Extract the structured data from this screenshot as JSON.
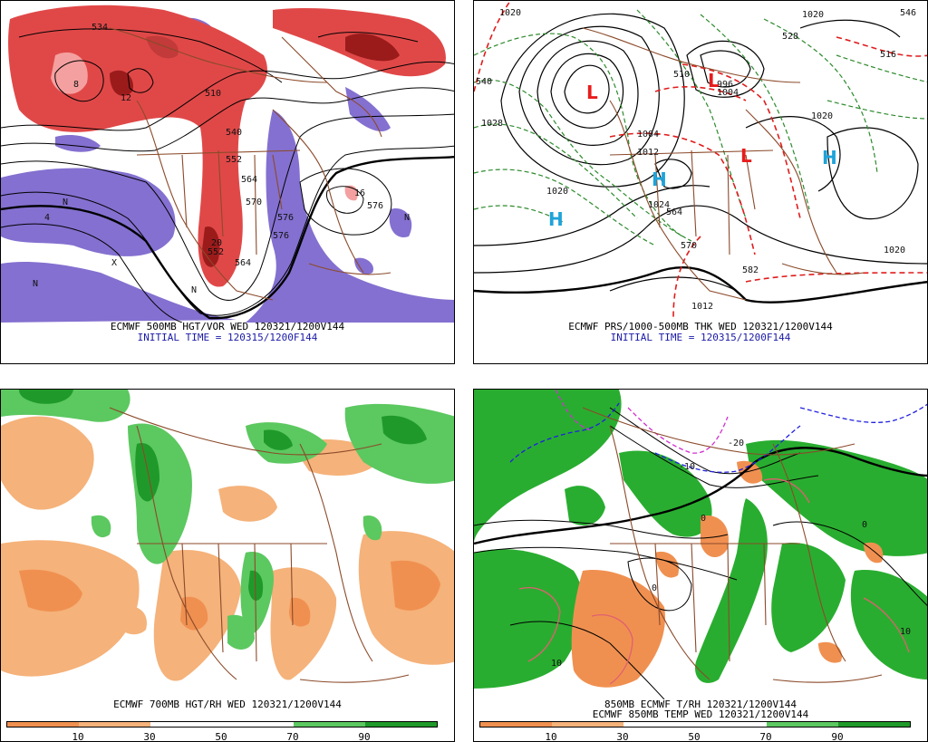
{
  "panels": [
    {
      "caption1": "ECMWF 500MB HGT/VOR WED 120321/1200V144",
      "caption2": "INITIAL TIME = 120315/1200F144",
      "contour_labels": [
        "534",
        "510",
        "540",
        "552",
        "564",
        "570",
        "576",
        "552",
        "564",
        "576",
        "576",
        "N",
        "N",
        "N",
        "N",
        "X",
        "4",
        "8",
        "12",
        "16",
        "20"
      ],
      "colors": {
        "vort_pos": "#e04848",
        "vort_pos_dark": "#9b1b1b",
        "vort_neg": "#8470d0",
        "contour": "#000000",
        "borders": "#8b4a2a"
      }
    },
    {
      "caption1": "ECMWF PRS/1000-500MB THK WED 120321/1200V144",
      "caption2": "INITIAL TIME = 120315/1200F144",
      "pressure_labels": [
        "1020",
        "1020",
        "1028",
        "1024",
        "1004",
        "1004",
        "996",
        "1012",
        "1020",
        "1020",
        "1020",
        "1012"
      ],
      "thickness_labels": [
        "540",
        "510",
        "516",
        "570",
        "546",
        "564",
        "582",
        "528"
      ],
      "highs": [
        "H",
        "H",
        "H"
      ],
      "lows": [
        "L",
        "L",
        "L"
      ],
      "colors": {
        "high": "#1fa3d9",
        "low": "#e81c1c",
        "thickness_cold": "#2d8a2d",
        "thickness_warm": "#e01c1c",
        "isobar": "#000000",
        "borders": "#8b4a2a"
      }
    },
    {
      "caption1": "ECMWF 700MB HGT/RH WED 120321/1200V144",
      "colorbar_ticks": [
        "10",
        "30",
        "50",
        "70",
        "90"
      ],
      "colors": {
        "dry_dark": "#f09050",
        "dry_light": "#f5b27a",
        "moist_light": "#5cc860",
        "moist_dark": "#1f9a2a",
        "borders": "#8b4a2a"
      }
    },
    {
      "caption1": "850MB ECMWF T/RH 120321/1200V144",
      "caption2": "ECMWF 850MB TEMP WED 120321/1200V144",
      "contour_labels": [
        "-20",
        "-10",
        "0",
        "10",
        "0",
        "0",
        "10"
      ],
      "colorbar_ticks": [
        "10",
        "30",
        "50",
        "70",
        "90"
      ],
      "colors": {
        "dry": "#f09050",
        "moist": "#29ad30",
        "cold_line": "#2020e0",
        "very_cold": "#d030d0",
        "warm_line": "#e06070",
        "borders": "#8b4a2a"
      }
    }
  ]
}
